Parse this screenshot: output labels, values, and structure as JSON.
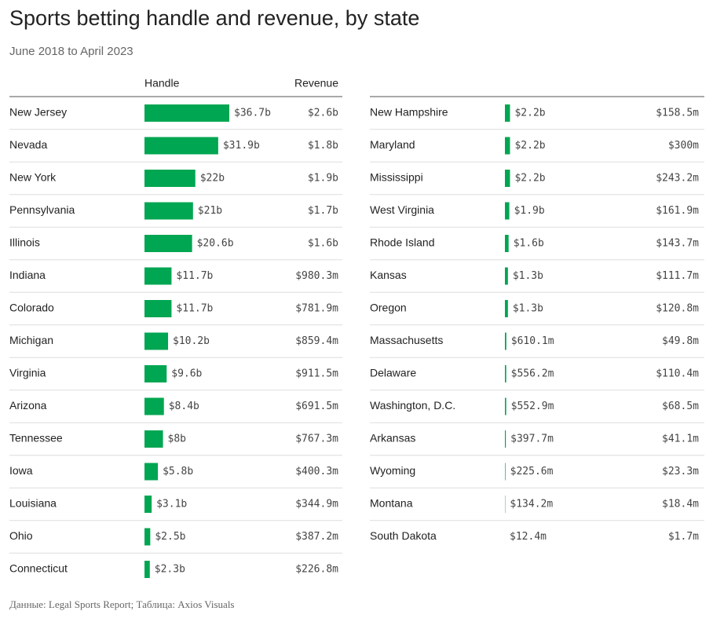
{
  "chart_data": {
    "type": "bar",
    "title": "Sports betting handle and revenue, by state",
    "subtitle": "June 2018 to April 2023",
    "source": "Данные: Legal Sports Report; Таблица: Axios Visuals",
    "categories": [
      "New Jersey",
      "Nevada",
      "New York",
      "Pennsylvania",
      "Illinois",
      "Indiana",
      "Colorado",
      "Michigan",
      "Virginia",
      "Arizona",
      "Tennessee",
      "Iowa",
      "Louisiana",
      "Ohio",
      "Connecticut",
      "New Hampshire",
      "Maryland",
      "Mississippi",
      "West Virginia",
      "Rhode Island",
      "Kansas",
      "Oregon",
      "Massachusetts",
      "Delaware",
      "Washington, D.C.",
      "Arkansas",
      "Wyoming",
      "Montana",
      "South Dakota"
    ],
    "series": [
      {
        "name": "Handle",
        "color": "#00a651",
        "values": [
          36.7,
          31.9,
          22,
          21,
          20.6,
          11.7,
          11.7,
          10.2,
          9.6,
          8.4,
          8,
          5.8,
          3.1,
          2.5,
          2.3,
          2.2,
          2.2,
          2.2,
          1.9,
          1.6,
          1.3,
          1.3,
          0.6101,
          0.5562,
          0.5529,
          0.3977,
          0.2256,
          0.1342,
          0.0124
        ],
        "value_labels": [
          "$36.7b",
          "$31.9b",
          "$22b",
          "$21b",
          "$20.6b",
          "$11.7b",
          "$11.7b",
          "$10.2b",
          "$9.6b",
          "$8.4b",
          "$8b",
          "$5.8b",
          "$3.1b",
          "$2.5b",
          "$2.3b",
          "$2.2b",
          "$2.2b",
          "$2.2b",
          "$1.9b",
          "$1.6b",
          "$1.3b",
          "$1.3b",
          "$610.1m",
          "$556.2m",
          "$552.9m",
          "$397.7m",
          "$225.6m",
          "$134.2m",
          "$12.4m"
        ]
      }
    ],
    "revenue": {
      "name": "Revenue",
      "labels": [
        "$2.6b",
        "$1.8b",
        "$1.9b",
        "$1.7b",
        "$1.6b",
        "$980.3m",
        "$781.9m",
        "$859.4m",
        "$911.5m",
        "$691.5m",
        "$767.3m",
        "$400.3m",
        "$344.9m",
        "$387.2m",
        "$226.8m",
        "$158.5m",
        "$300m",
        "$243.2m",
        "$161.9m",
        "$143.7m",
        "$111.7m",
        "$120.8m",
        "$49.8m",
        "$110.4m",
        "$68.5m",
        "$41.1m",
        "$23.3m",
        "$18.4m",
        "$1.7m"
      ]
    }
  }
}
